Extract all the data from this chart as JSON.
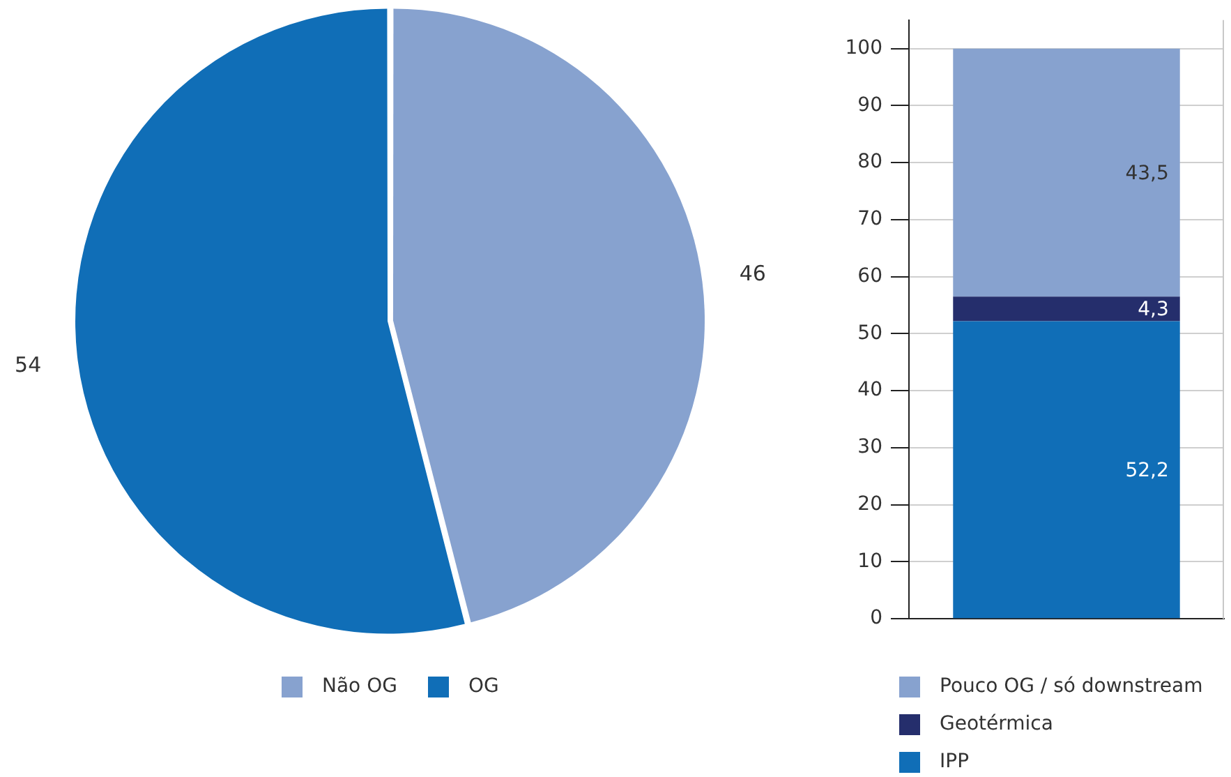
{
  "chart_data": [
    {
      "type": "pie",
      "categories": [
        "Não OG",
        "OG"
      ],
      "values": [
        46,
        54
      ],
      "colors": [
        "#87a2cf",
        "#106eb7"
      ],
      "data_labels": true,
      "legend": "bottom"
    },
    {
      "type": "bar",
      "categories": [
        null
      ],
      "stacked": true,
      "ylim": [
        0,
        105
      ],
      "yticks": [
        0,
        10,
        20,
        30,
        40,
        50,
        60,
        70,
        80,
        90,
        100
      ],
      "grid": "y",
      "legend": "bottom",
      "series": [
        {
          "name": "IPP",
          "color": "#106eb7",
          "values": [
            52.2
          ],
          "value_labels": [
            "52,2"
          ]
        },
        {
          "name": "Geotérmica",
          "color": "#252e6c",
          "values": [
            4.3
          ],
          "value_labels": [
            "4,3"
          ]
        },
        {
          "name": "Pouco OG / só downstream",
          "color": "#87a2cf",
          "values": [
            43.5
          ],
          "value_labels": [
            "43,5"
          ]
        }
      ]
    }
  ]
}
